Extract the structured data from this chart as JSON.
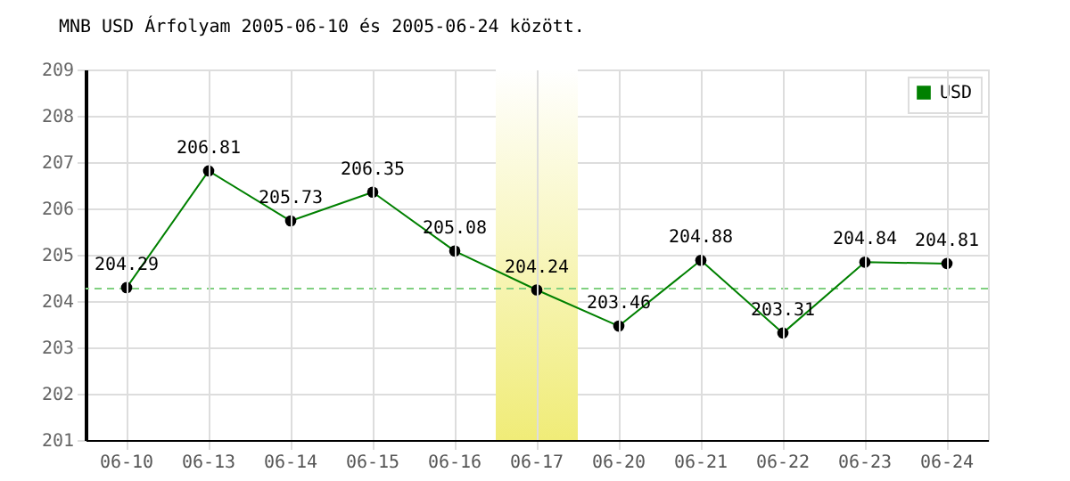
{
  "chart_data": {
    "type": "line",
    "title": "MNB USD Árfolyam 2005-06-10 és 2005-06-24 között.",
    "categories": [
      "06-10",
      "06-13",
      "06-14",
      "06-15",
      "06-16",
      "06-17",
      "06-20",
      "06-21",
      "06-22",
      "06-23",
      "06-24"
    ],
    "series": [
      {
        "name": "USD",
        "color": "#008000",
        "values": [
          204.29,
          206.81,
          205.73,
          206.35,
          205.08,
          204.24,
          203.46,
          204.88,
          203.31,
          204.84,
          204.81
        ]
      }
    ],
    "ylim": [
      201,
      209
    ],
    "yticks": [
      201,
      202,
      203,
      204,
      205,
      206,
      207,
      208,
      209
    ],
    "ref_lines": [
      {
        "axis": "y",
        "value": 204.27,
        "color": "#80d080",
        "line_style": "dashed"
      }
    ],
    "bands": [
      {
        "axis": "x",
        "from": "06-17",
        "to": "06-17",
        "color": "#f0ec78"
      }
    ],
    "data_labels": true,
    "grid": true,
    "legend": "top right",
    "marker": "circle",
    "line_style": "solid"
  }
}
